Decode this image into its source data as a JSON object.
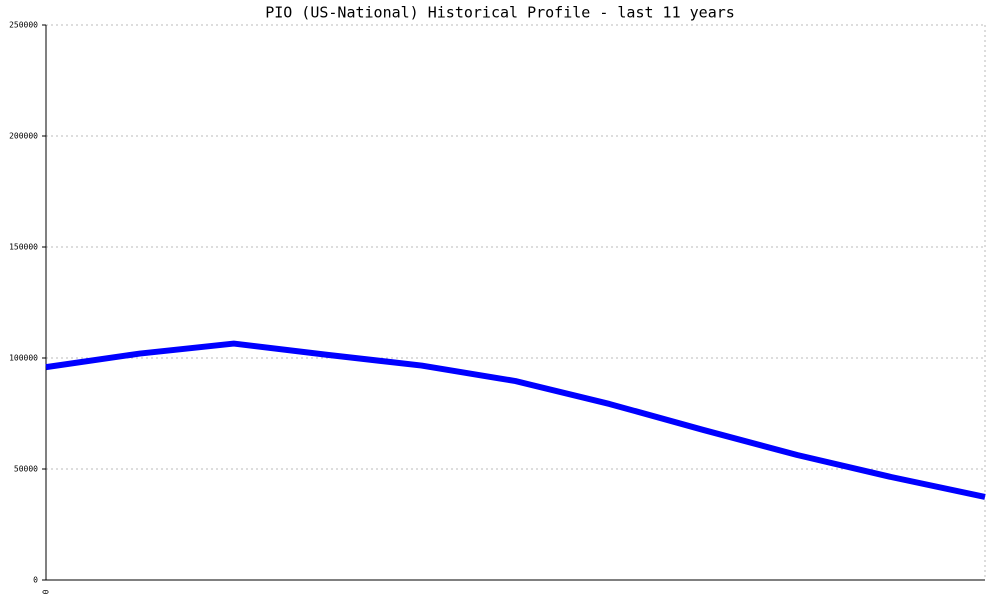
{
  "chart_data": {
    "type": "line",
    "title": "PIO (US-National) Historical Profile - last 11 years",
    "categories": [
      "0",
      null,
      null,
      null,
      null,
      null,
      null,
      null,
      null,
      null,
      null
    ],
    "series": [
      {
        "color": "#0000ff",
        "values": [
          95900,
          102000,
          106500,
          101400,
          96600,
          89600,
          79300,
          67600,
          56300,
          46400,
          37400
        ]
      }
    ],
    "ylim": [
      0,
      250000
    ],
    "yticks": [
      0,
      50000,
      100000,
      150000,
      200000,
      250000
    ],
    "grid": true
  }
}
